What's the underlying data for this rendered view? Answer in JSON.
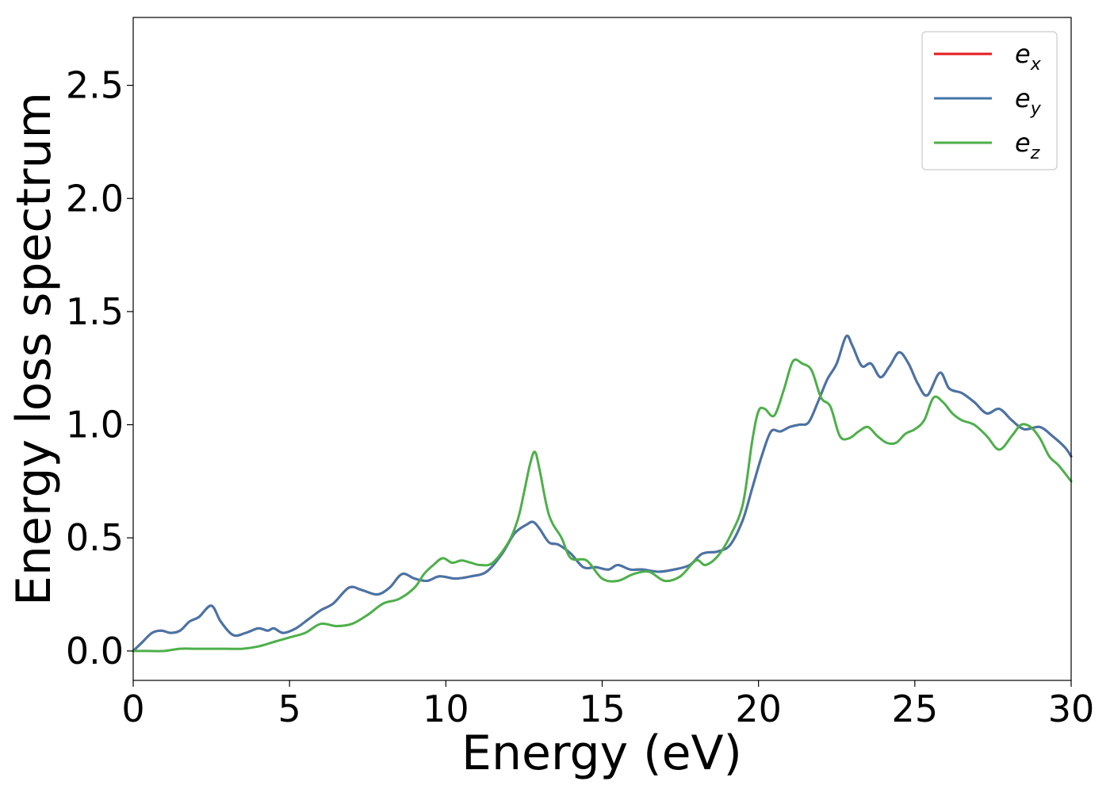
{
  "chart_data": {
    "type": "line",
    "title": "",
    "xlabel": "Energy (eV)",
    "ylabel": "Energy loss spectrum",
    "xlim": [
      0,
      30
    ],
    "ylim": [
      -0.13,
      2.8
    ],
    "xticks": [
      0,
      5,
      10,
      15,
      20,
      25,
      30
    ],
    "xtick_labels": [
      "0",
      "5",
      "10",
      "15",
      "20",
      "25",
      "30"
    ],
    "yticks": [
      0.0,
      0.5,
      1.0,
      1.5,
      2.0,
      2.5
    ],
    "ytick_labels": [
      "0.0",
      "0.5",
      "1.0",
      "1.5",
      "2.0",
      "2.5"
    ],
    "grid": false,
    "legend_position": "top-right",
    "series": [
      {
        "name": "e_x",
        "legend_base": "e",
        "legend_sub": "x",
        "color": "#e41a1c",
        "x": [
          0,
          0.3,
          0.6,
          0.9,
          1.2,
          1.5,
          1.8,
          2.1,
          2.5,
          2.8,
          3.2,
          3.6,
          4.0,
          4.3,
          4.5,
          4.8,
          5.2,
          5.6,
          6.0,
          6.4,
          6.9,
          7.3,
          7.8,
          8.2,
          8.6,
          9.0,
          9.4,
          9.8,
          10.3,
          10.8,
          11.3,
          11.8,
          12.2,
          12.6,
          12.8,
          13.0,
          13.3,
          13.6,
          14.0,
          14.4,
          14.8,
          15.2,
          15.5,
          15.9,
          16.3,
          16.8,
          17.3,
          17.8,
          18.2,
          18.7,
          19.1,
          19.5,
          19.8,
          20.1,
          20.4,
          20.7,
          21.0,
          21.3,
          21.6,
          21.9,
          22.2,
          22.5,
          22.8,
          23.0,
          23.3,
          23.6,
          23.9,
          24.2,
          24.5,
          24.8,
          25.1,
          25.4,
          25.8,
          26.1,
          26.5,
          26.9,
          27.3,
          27.7,
          28.1,
          28.5,
          29.0,
          29.4,
          29.8,
          30.0
        ],
        "y": [
          0.0,
          0.04,
          0.08,
          0.09,
          0.08,
          0.09,
          0.13,
          0.15,
          0.2,
          0.13,
          0.07,
          0.08,
          0.1,
          0.09,
          0.1,
          0.08,
          0.1,
          0.14,
          0.18,
          0.21,
          0.28,
          0.27,
          0.25,
          0.28,
          0.34,
          0.32,
          0.31,
          0.33,
          0.32,
          0.33,
          0.35,
          0.43,
          0.52,
          0.56,
          0.57,
          0.54,
          0.48,
          0.47,
          0.43,
          0.37,
          0.37,
          0.36,
          0.38,
          0.36,
          0.36,
          0.35,
          0.36,
          0.38,
          0.43,
          0.44,
          0.47,
          0.58,
          0.72,
          0.86,
          0.97,
          0.97,
          0.99,
          1.0,
          1.01,
          1.1,
          1.2,
          1.27,
          1.39,
          1.35,
          1.26,
          1.27,
          1.21,
          1.26,
          1.32,
          1.27,
          1.18,
          1.13,
          1.23,
          1.16,
          1.14,
          1.1,
          1.05,
          1.07,
          1.02,
          0.98,
          0.99,
          0.95,
          0.9,
          0.86
        ]
      },
      {
        "name": "e_y",
        "legend_base": "e",
        "legend_sub": "y",
        "color": "#4575a8",
        "x": [
          0,
          0.3,
          0.6,
          0.9,
          1.2,
          1.5,
          1.8,
          2.1,
          2.5,
          2.8,
          3.2,
          3.6,
          4.0,
          4.3,
          4.5,
          4.8,
          5.2,
          5.6,
          6.0,
          6.4,
          6.9,
          7.3,
          7.8,
          8.2,
          8.6,
          9.0,
          9.4,
          9.8,
          10.3,
          10.8,
          11.3,
          11.8,
          12.2,
          12.6,
          12.8,
          13.0,
          13.3,
          13.6,
          14.0,
          14.4,
          14.8,
          15.2,
          15.5,
          15.9,
          16.3,
          16.8,
          17.3,
          17.8,
          18.2,
          18.7,
          19.1,
          19.5,
          19.8,
          20.1,
          20.4,
          20.7,
          21.0,
          21.3,
          21.6,
          21.9,
          22.2,
          22.5,
          22.8,
          23.0,
          23.3,
          23.6,
          23.9,
          24.2,
          24.5,
          24.8,
          25.1,
          25.4,
          25.8,
          26.1,
          26.5,
          26.9,
          27.3,
          27.7,
          28.1,
          28.5,
          29.0,
          29.4,
          29.8,
          30.0
        ],
        "y": [
          0.0,
          0.04,
          0.08,
          0.09,
          0.08,
          0.09,
          0.13,
          0.15,
          0.2,
          0.13,
          0.07,
          0.08,
          0.1,
          0.09,
          0.1,
          0.08,
          0.1,
          0.14,
          0.18,
          0.21,
          0.28,
          0.27,
          0.25,
          0.28,
          0.34,
          0.32,
          0.31,
          0.33,
          0.32,
          0.33,
          0.35,
          0.43,
          0.52,
          0.56,
          0.57,
          0.54,
          0.48,
          0.47,
          0.43,
          0.37,
          0.37,
          0.36,
          0.38,
          0.36,
          0.36,
          0.35,
          0.36,
          0.38,
          0.43,
          0.44,
          0.47,
          0.58,
          0.72,
          0.86,
          0.97,
          0.97,
          0.99,
          1.0,
          1.01,
          1.1,
          1.2,
          1.27,
          1.39,
          1.35,
          1.26,
          1.27,
          1.21,
          1.26,
          1.32,
          1.27,
          1.18,
          1.13,
          1.23,
          1.16,
          1.14,
          1.1,
          1.05,
          1.07,
          1.02,
          0.98,
          0.99,
          0.95,
          0.9,
          0.86
        ]
      },
      {
        "name": "e_z",
        "legend_base": "e",
        "legend_sub": "z",
        "color": "#4daf4a",
        "x": [
          0,
          0.5,
          1.0,
          1.5,
          2.0,
          2.5,
          3.0,
          3.5,
          4.0,
          4.5,
          5.0,
          5.5,
          6.0,
          6.5,
          7.0,
          7.5,
          8.0,
          8.5,
          9.0,
          9.3,
          9.6,
          9.9,
          10.2,
          10.5,
          10.8,
          11.1,
          11.5,
          12.0,
          12.3,
          12.5,
          12.7,
          12.85,
          13.0,
          13.3,
          13.7,
          14.0,
          14.5,
          15.0,
          15.5,
          16.0,
          16.5,
          17.0,
          17.5,
          18.0,
          18.3,
          18.7,
          19.1,
          19.5,
          19.8,
          20.0,
          20.2,
          20.5,
          20.8,
          21.1,
          21.4,
          21.7,
          22.0,
          22.3,
          22.6,
          22.9,
          23.2,
          23.5,
          23.8,
          24.1,
          24.4,
          24.7,
          25.0,
          25.3,
          25.6,
          25.9,
          26.2,
          26.5,
          26.9,
          27.3,
          27.7,
          28.1,
          28.4,
          28.7,
          29.0,
          29.3,
          29.6,
          30.0
        ],
        "y": [
          0.0,
          0.0,
          0.0,
          0.01,
          0.01,
          0.01,
          0.01,
          0.01,
          0.02,
          0.04,
          0.06,
          0.08,
          0.12,
          0.11,
          0.12,
          0.16,
          0.21,
          0.23,
          0.28,
          0.34,
          0.38,
          0.41,
          0.39,
          0.4,
          0.39,
          0.38,
          0.39,
          0.48,
          0.58,
          0.7,
          0.83,
          0.88,
          0.8,
          0.6,
          0.5,
          0.41,
          0.4,
          0.32,
          0.31,
          0.34,
          0.35,
          0.31,
          0.33,
          0.4,
          0.38,
          0.42,
          0.51,
          0.65,
          0.93,
          1.06,
          1.07,
          1.04,
          1.15,
          1.28,
          1.27,
          1.24,
          1.12,
          1.08,
          0.95,
          0.94,
          0.97,
          0.99,
          0.95,
          0.92,
          0.92,
          0.96,
          0.98,
          1.02,
          1.12,
          1.1,
          1.05,
          1.02,
          1.0,
          0.95,
          0.89,
          0.95,
          1.0,
          0.99,
          0.94,
          0.86,
          0.82,
          0.75
        ]
      }
    ]
  }
}
